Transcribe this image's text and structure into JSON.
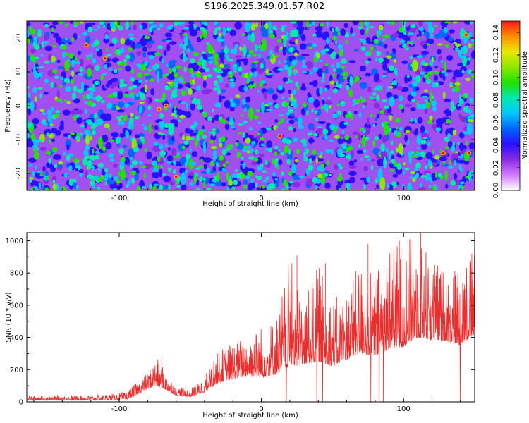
{
  "title": "S196.2025.349.01.57.R02",
  "chart_data": [
    {
      "type": "heatmap",
      "name": "spectrogram",
      "xlabel": "Height of straight line (km)",
      "ylabel": "Frequency (Hz)",
      "xlim": [
        -165,
        150
      ],
      "ylim": [
        -25,
        25
      ],
      "xticks": [
        -100,
        0,
        100
      ],
      "yticks": [
        -20,
        -10,
        0,
        10,
        20
      ],
      "colorbar": {
        "label": "Normalized spectral amplitude",
        "range": [
          0,
          0.15
        ],
        "ticks": [
          "0.00",
          "0.02",
          "0.04",
          "0.06",
          "0.08",
          "0.10",
          "0.12",
          "0.14"
        ],
        "ticks_value": [
          0,
          0.02,
          0.04,
          0.06,
          0.08,
          0.1,
          0.12,
          0.14
        ],
        "colors": [
          "#ffffff",
          "#d27bff",
          "#8a2be2",
          "#2a10ff",
          "#0064ff",
          "#00c8ff",
          "#00e8b0",
          "#22e000",
          "#8ae800",
          "#e8e800",
          "#ff9000",
          "#ff1a1a"
        ]
      },
      "description_values": "Dense speckled noise field; amplitude mostly 0.02–0.06 with scattered peaks up to ~0.14"
    },
    {
      "type": "line",
      "name": "snr",
      "xlabel": "Height of straight line (km)",
      "ylabel": "SNR (10 * v/v)",
      "xlim": [
        -165,
        150
      ],
      "ylim": [
        0,
        1050
      ],
      "xticks": [
        -100,
        0,
        100
      ],
      "yticks": [
        0,
        200,
        400,
        600,
        800,
        1000
      ],
      "color": "#ee2c2c",
      "envelope": {
        "x": [
          -165,
          -120,
          -95,
          -88,
          -80,
          -74,
          -68,
          -60,
          -50,
          -40,
          -30,
          -20,
          -10,
          0,
          10,
          20,
          30,
          40,
          50,
          60,
          70,
          80,
          90,
          100,
          110,
          120,
          130,
          140,
          150
        ],
        "base": [
          10,
          10,
          15,
          40,
          80,
          100,
          80,
          40,
          30,
          60,
          120,
          140,
          160,
          150,
          170,
          220,
          230,
          250,
          220,
          260,
          300,
          280,
          330,
          340,
          400,
          380,
          380,
          350,
          420
        ],
        "peak": [
          40,
          40,
          60,
          120,
          180,
          280,
          200,
          100,
          80,
          160,
          320,
          380,
          420,
          480,
          520,
          900,
          620,
          860,
          640,
          700,
          880,
          800,
          980,
          1000,
          1060,
          900,
          820,
          900,
          920
        ]
      },
      "notable_peaks": [
        {
          "x": -70,
          "y": 280
        },
        {
          "x": 25,
          "y": 910
        },
        {
          "x": 45,
          "y": 860
        },
        {
          "x": 75,
          "y": 980
        },
        {
          "x": 97,
          "y": 1000
        },
        {
          "x": 112,
          "y": 1050
        },
        {
          "x": 148,
          "y": 920
        }
      ]
    }
  ]
}
